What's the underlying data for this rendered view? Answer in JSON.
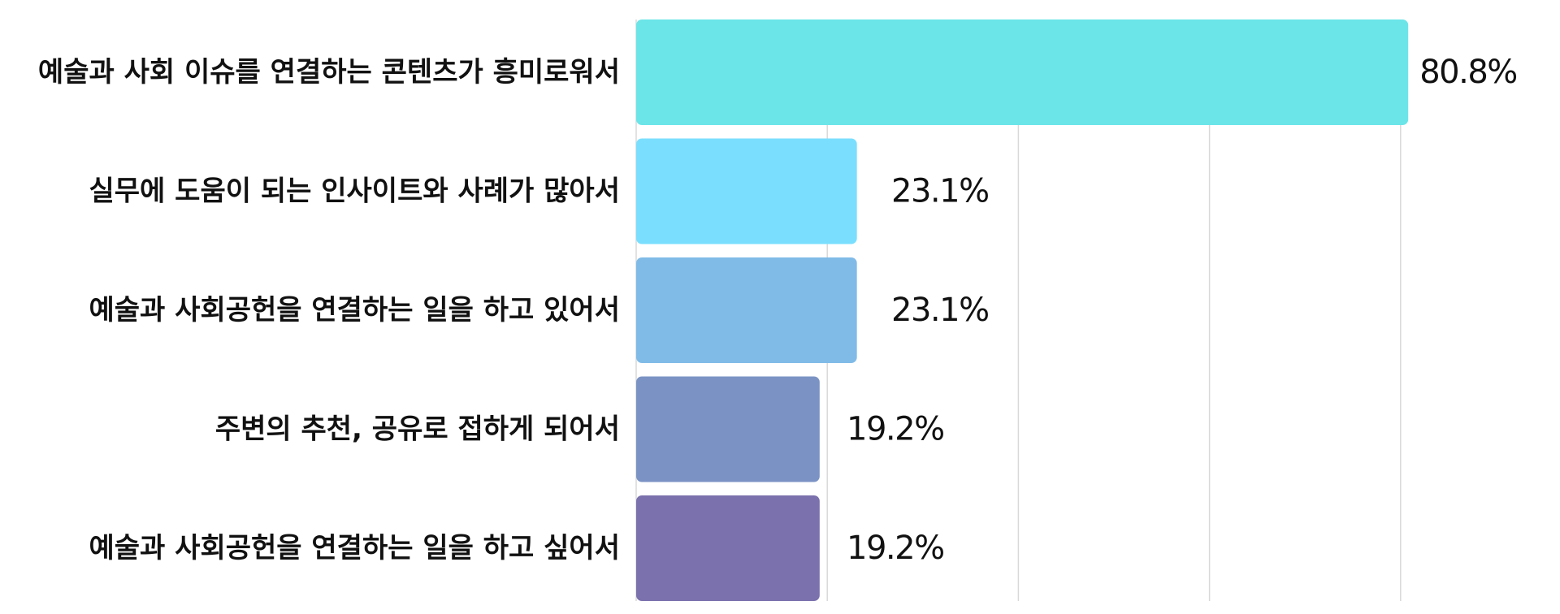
{
  "chart_data": {
    "type": "bar",
    "orientation": "horizontal",
    "categories": [
      "예술과 사회 이슈를 연결하는 콘텐츠가 흥미로워서",
      "실무에 도움이 되는 인사이트와 사례가 많아서",
      "예술과 사회공헌을 연결하는 일을 하고 있어서",
      "주변의 추천, 공유로 접하게 되어서",
      "예술과 사회공헌을 연결하는 일을 하고 싶어서"
    ],
    "values": [
      80.8,
      23.1,
      23.1,
      19.2,
      19.2
    ],
    "value_labels": [
      "80.8%",
      "23.1%",
      "23.1%",
      "19.2%",
      "19.2%"
    ],
    "colors": [
      "#6be5e8",
      "#7adffe",
      "#80bbe8",
      "#7b93c4",
      "#7a71ad"
    ],
    "unit": "%",
    "xlim": [
      0,
      84
    ],
    "gridlines": [
      20,
      40,
      60,
      80
    ],
    "grid": true,
    "legend": "none"
  }
}
